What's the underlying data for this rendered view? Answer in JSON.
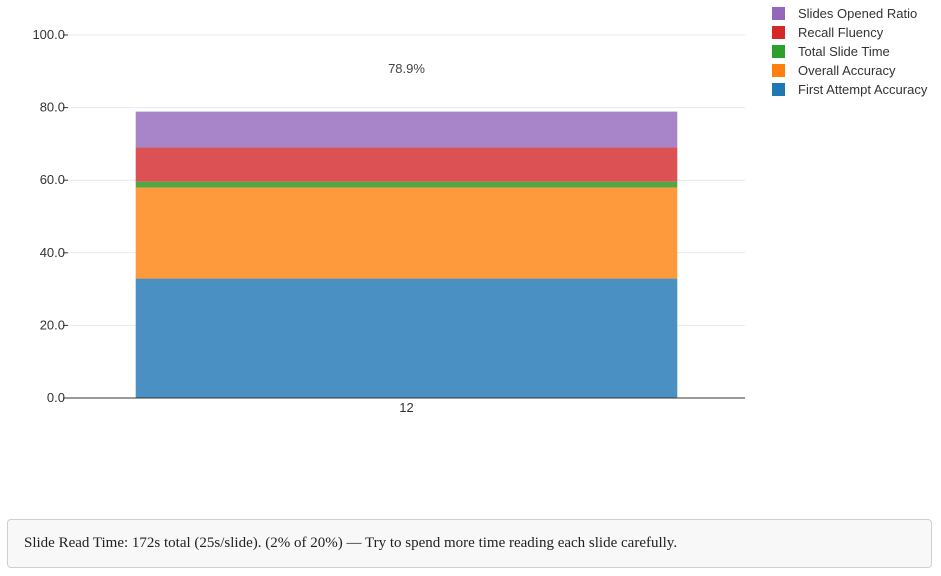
{
  "chart_data": {
    "type": "bar",
    "stacked": true,
    "categories": [
      "12"
    ],
    "ylim": [
      0,
      100
    ],
    "yticks": [
      "0.0",
      "20.0",
      "40.0",
      "60.0",
      "80.0",
      "100.0"
    ],
    "grid": true,
    "legend_position": "top-right",
    "total_label": "78.9%",
    "series": [
      {
        "name": "First Attempt Accuracy",
        "values": [
          32.9
        ],
        "color": "#4a90c2"
      },
      {
        "name": "Overall Accuracy",
        "values": [
          25.1
        ],
        "color": "#ff9a3c"
      },
      {
        "name": "Total Slide Time",
        "values": [
          1.6
        ],
        "color": "#4ea846"
      },
      {
        "name": "Recall Fluency",
        "values": [
          9.4
        ],
        "color": "#dc5154"
      },
      {
        "name": "Slides Opened Ratio",
        "values": [
          9.9
        ],
        "color": "#a885c9"
      }
    ],
    "legend_order": [
      "Slides Opened Ratio",
      "Recall Fluency",
      "Total Slide Time",
      "Overall Accuracy",
      "First Attempt Accuracy"
    ],
    "legend_colors": {
      "Slides Opened Ratio": "#9467bd",
      "Recall Fluency": "#d62728",
      "Total Slide Time": "#2ca02c",
      "Overall Accuracy": "#ff7f0e",
      "First Attempt Accuracy": "#1f77b4"
    }
  },
  "footer": {
    "text": "Slide Read Time: 172s total (25s/slide). (2% of 20%) — Try to spend more time reading each slide carefully."
  }
}
